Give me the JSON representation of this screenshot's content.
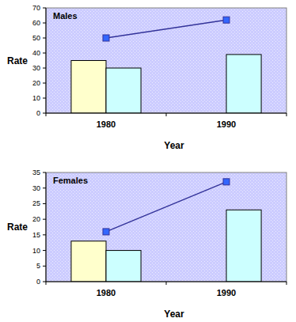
{
  "chart_data": [
    {
      "type": "bar",
      "title": "Males",
      "xlabel": "Year",
      "ylabel": "Rate",
      "categories": [
        "1980",
        "1990"
      ],
      "series": [
        {
          "type": "bar",
          "color": "#ffffcc",
          "values": [
            35,
            null
          ]
        },
        {
          "type": "bar",
          "color": "#ccffff",
          "values": [
            30,
            39
          ]
        },
        {
          "type": "line",
          "color": "#333399",
          "marker": "square",
          "values": [
            50,
            62
          ]
        }
      ],
      "ylim": [
        0,
        70
      ],
      "yticks": [
        0,
        10,
        20,
        30,
        40,
        50,
        60,
        70
      ],
      "grid": false
    },
    {
      "type": "bar",
      "title": "Females",
      "xlabel": "Year",
      "ylabel": "Rate",
      "categories": [
        "1980",
        "1990"
      ],
      "series": [
        {
          "type": "bar",
          "color": "#ffffcc",
          "values": [
            13,
            null
          ]
        },
        {
          "type": "bar",
          "color": "#ccffff",
          "values": [
            10,
            23
          ]
        },
        {
          "type": "line",
          "color": "#333399",
          "marker": "square",
          "values": [
            16,
            32
          ]
        }
      ],
      "ylim": [
        0,
        35
      ],
      "yticks": [
        0,
        5,
        10,
        15,
        20,
        25,
        30,
        35
      ],
      "grid": false
    }
  ]
}
